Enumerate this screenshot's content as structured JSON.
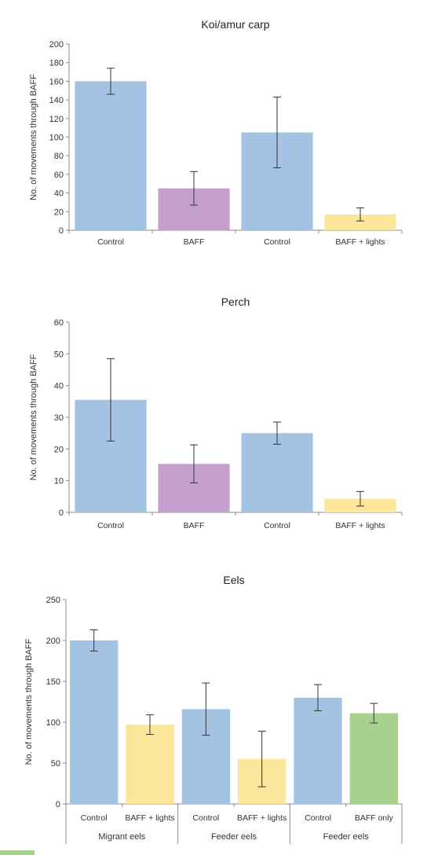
{
  "colors": {
    "control": "#a4c2e4",
    "baff": "#c5a0cf",
    "baff_lights": "#fbe69c",
    "baff_only": "#a9d18e"
  },
  "chart_data": [
    {
      "type": "bar",
      "title": "Koi/amur carp",
      "ylabel": "No. of movements through BAFF",
      "xlabel": "",
      "ylim": [
        0,
        200
      ],
      "yticks": [
        0,
        20,
        40,
        60,
        80,
        100,
        120,
        140,
        160,
        180,
        200
      ],
      "grid": false,
      "legend": "none",
      "categories": [
        "Control",
        "BAFF",
        "Control",
        "BAFF + lights"
      ],
      "values": [
        160,
        45,
        105,
        17
      ],
      "error": [
        14,
        18,
        38,
        7
      ],
      "bar_colors": [
        "control",
        "baff",
        "control",
        "baff_lights"
      ],
      "groups": []
    },
    {
      "type": "bar",
      "title": "Perch",
      "ylabel": "No. of movements through BAFF",
      "xlabel": "",
      "ylim": [
        0,
        60
      ],
      "yticks": [
        0,
        10,
        20,
        30,
        40,
        50,
        60
      ],
      "grid": false,
      "legend": "none",
      "categories": [
        "Control",
        "BAFF",
        "Control",
        "BAFF + lights"
      ],
      "values": [
        35.5,
        15.3,
        25,
        4.3
      ],
      "error": [
        13,
        6,
        3.5,
        2.3
      ],
      "bar_colors": [
        "control",
        "baff",
        "control",
        "baff_lights"
      ],
      "groups": []
    },
    {
      "type": "bar",
      "title": "Eels",
      "ylabel": "No. of movements through BAFF",
      "xlabel": "",
      "ylim": [
        0,
        250
      ],
      "yticks": [
        0,
        50,
        100,
        150,
        200,
        250
      ],
      "grid": false,
      "legend": "none",
      "categories": [
        "Control",
        "BAFF + lights",
        "Control",
        "BAFF + lights",
        "Control",
        "BAFF only"
      ],
      "values": [
        200,
        97,
        116,
        55,
        130,
        111
      ],
      "error": [
        13,
        12,
        32,
        34,
        16,
        12
      ],
      "bar_colors": [
        "control",
        "baff_lights",
        "control",
        "baff_lights",
        "control",
        "baff_only"
      ],
      "groups": [
        {
          "label": "Migrant eels",
          "span": 2
        },
        {
          "label": "Feeder eels",
          "span": 2
        },
        {
          "label": "Feeder eels",
          "span": 2
        }
      ]
    }
  ]
}
